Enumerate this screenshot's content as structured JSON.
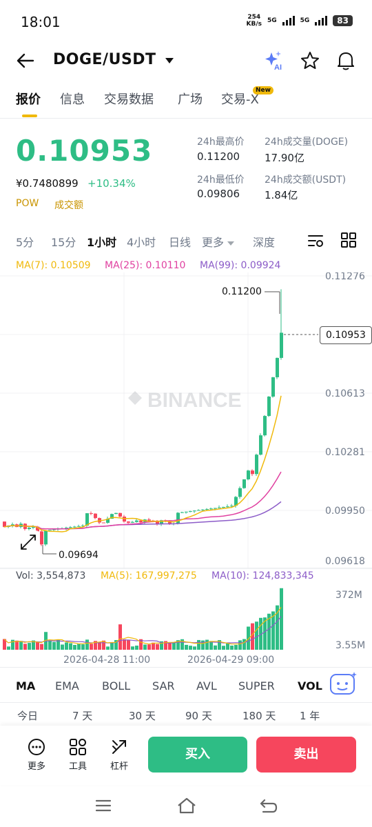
{
  "status": {
    "time": "18:01",
    "speed_value": "254",
    "speed_unit": "KB/s",
    "sim1": "5G",
    "sim2": "5G",
    "battery": "83"
  },
  "header": {
    "pair": "DOGE/USDT"
  },
  "tabs": [
    {
      "label": "报价"
    },
    {
      "label": "信息"
    },
    {
      "label": "交易数据"
    },
    {
      "label": "广场"
    },
    {
      "label": "交易-X"
    }
  ],
  "new_badge": "New",
  "ticker": {
    "price": "0.10953",
    "cny": "¥0.7480899",
    "change": "+10.34%",
    "tag_pow": "POW",
    "tag_volume": "成交额",
    "high_label": "24h最高价",
    "high_value": "0.11200",
    "low_label": "24h最低价",
    "low_value": "0.09806",
    "vol_label": "24h成交量(DOGE)",
    "vol_value": "17.90亿",
    "amt_label": "24h成交额(USDT)",
    "amt_value": "1.84亿"
  },
  "intervals": [
    "5分",
    "15分",
    "1小时",
    "4小时",
    "日线",
    "更多",
    "深度"
  ],
  "chart": {
    "ma7": "MA(7): 0.10509",
    "ma25": "MA(25): 0.10110",
    "ma99": "MA(99): 0.09924",
    "y_ticks": [
      "0.11276",
      "0.10613",
      "0.10281",
      "0.09950",
      "0.09618"
    ],
    "high_marker": "0.11200",
    "low_marker": "0.09694",
    "current_price": "0.10953",
    "watermark": "BINANCE",
    "vol_label": "Vol: 3,554,873",
    "vol_ma5": "MA(5): 167,997,275",
    "vol_ma10": "MA(10): 124,833,345",
    "vol_ticks": [
      "372M",
      "3.55M"
    ],
    "x_ticks": [
      "2026-04-28 11:00",
      "2026-04-29 09:00"
    ]
  },
  "colors": {
    "up": "#2ebd85",
    "down": "#f6465d",
    "ma7": "#f0b90b",
    "ma25": "#e040a0",
    "ma99": "#8c5cc8"
  },
  "indicators": [
    "MA",
    "EMA",
    "BOLL",
    "SAR",
    "AVL",
    "SUPER",
    "VOL"
  ],
  "periods": [
    "今日",
    "7 天",
    "30 天",
    "90 天",
    "180 天",
    "1 年"
  ],
  "bottom": {
    "more": "更多",
    "tools": "工具",
    "leverage": "杠杆",
    "buy": "买入",
    "sell": "卖出"
  }
}
